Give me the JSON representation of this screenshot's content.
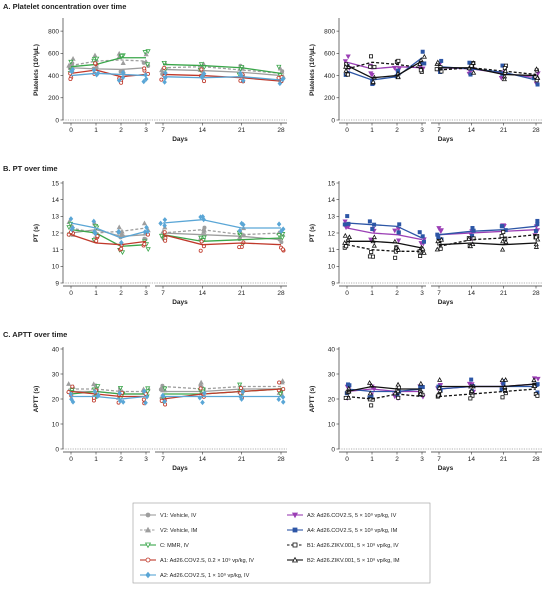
{
  "sections": [
    {
      "letter": "A.",
      "title": "Platelet concentration over time",
      "ylabel": "Platelets (10³/µL)",
      "yticks": [
        0,
        200,
        400,
        600,
        800
      ],
      "ylim": [
        0,
        900
      ]
    },
    {
      "letter": "B.",
      "title": "PT over time",
      "ylabel": "PT (s)",
      "yticks": [
        9,
        10,
        11,
        12,
        13,
        14,
        15
      ],
      "ylim": [
        9,
        15
      ]
    },
    {
      "letter": "C.",
      "title": "APTT over time",
      "ylabel": "APTT (s)",
      "yticks": [
        0,
        10,
        20,
        30,
        40
      ],
      "ylim": [
        0,
        40
      ]
    }
  ],
  "xlabel": "Days",
  "xticks": [
    "0",
    "1",
    "2",
    "3",
    "7",
    "14",
    "21",
    "28"
  ],
  "legend": [
    {
      "label": "V1: Vehicle, IV",
      "color": "#9e9e9e",
      "marker": "circle",
      "dash": false,
      "filled": true
    },
    {
      "label": "V2: Vehicle, IM",
      "color": "#9e9e9e",
      "marker": "triangle",
      "dash": true,
      "filled": true
    },
    {
      "label": "C: MMR, IV",
      "color": "#3aa64a",
      "marker": "triangle-down-open",
      "dash": false,
      "filled": false
    },
    {
      "label": "A1: Ad26.COV2.S, 0.2 × 10⁹ vp/kg, IV",
      "color": "#c0392b",
      "marker": "circle-open",
      "dash": false,
      "filled": false
    },
    {
      "label": "A2: Ad26.COV2.S, 1 × 10⁹ vp/kg, IV",
      "color": "#5aa6d6",
      "marker": "diamond",
      "dash": false,
      "filled": true
    },
    {
      "label": "A3: Ad26.COV2.S, 5 × 10⁹ vp/kg, IV",
      "color": "#9b3fb5",
      "marker": "triangle-down",
      "dash": false,
      "filled": true
    },
    {
      "label": "A4: Ad26.COV2.S, 5 × 10⁹ vp/kg, IM",
      "color": "#2d56a6",
      "marker": "square",
      "dash": false,
      "filled": true
    },
    {
      "label": "B1: Ad26.ZIKV.001, 5 × 10⁹ vp/kg, IV",
      "color": "#111111",
      "marker": "square-open",
      "dash": true,
      "filled": false
    },
    {
      "label": "B2: Ad26.ZIKV.001, 5 × 10⁹ vp/kg, IM",
      "color": "#111111",
      "marker": "triangle-open",
      "dash": false,
      "filled": false
    }
  ],
  "chart_data": [
    {
      "type": "line",
      "panel": "A-left",
      "x": [
        "0",
        "1",
        "2",
        "3",
        "7",
        "14",
        "21",
        "28"
      ],
      "ylim": [
        0,
        900
      ],
      "series": [
        {
          "name": "V1: Vehicle, IV",
          "values": [
            470,
            460,
            455,
            470,
            455,
            445,
            430,
            400
          ]
        },
        {
          "name": "V2: Vehicle, IM",
          "values": [
            490,
            530,
            540,
            530,
            470,
            480,
            450,
            420
          ]
        },
        {
          "name": "C: MMR, IV",
          "values": [
            480,
            500,
            560,
            560,
            500,
            490,
            470,
            420
          ]
        },
        {
          "name": "A1: Ad26.COV2.S, 0.2 × 10⁹ vp/kg, IV",
          "values": [
            420,
            450,
            390,
            410,
            410,
            400,
            380,
            350
          ]
        },
        {
          "name": "A2: Ad26.COV2.S, 1 × 10⁹ vp/kg, IV",
          "values": [
            400,
            420,
            410,
            400,
            390,
            380,
            390,
            360
          ]
        }
      ]
    },
    {
      "type": "line",
      "panel": "A-right",
      "x": [
        "0",
        "1",
        "2",
        "3",
        "7",
        "14",
        "21",
        "28"
      ],
      "ylim": [
        0,
        900
      ],
      "series": [
        {
          "name": "A3: Ad26.COV2.S, 5 × 10⁹ vp/kg, IV",
          "values": [
            520,
            460,
            480,
            470,
            470,
            460,
            420,
            380
          ]
        },
        {
          "name": "A4: Ad26.COV2.S, 5 × 10⁹ vp/kg, IM",
          "values": [
            440,
            360,
            390,
            560,
            480,
            460,
            430,
            360
          ]
        },
        {
          "name": "B1: Ad26.ZIKV.001, 5 × 10⁹ vp/kg, IV",
          "values": [
            460,
            520,
            500,
            470,
            450,
            470,
            440,
            410
          ]
        },
        {
          "name": "B2: Ad26.ZIKV.001, 5 × 10⁹ vp/kg, IM",
          "values": [
            490,
            380,
            400,
            530,
            470,
            470,
            410,
            400
          ]
        }
      ]
    },
    {
      "type": "line",
      "panel": "B-left",
      "x": [
        "0",
        "1",
        "2",
        "3",
        "7",
        "14",
        "21",
        "28"
      ],
      "ylim": [
        9,
        15
      ],
      "series": [
        {
          "name": "V1: Vehicle, IV",
          "values": [
            12.0,
            12.2,
            11.8,
            11.9,
            12.0,
            11.9,
            11.8,
            11.6
          ]
        },
        {
          "name": "V2: Vehicle, IM",
          "values": [
            12.3,
            12.0,
            12.1,
            12.3,
            12.0,
            12.2,
            11.9,
            12.0
          ]
        },
        {
          "name": "C: MMR, IV",
          "values": [
            12.2,
            12.0,
            11.2,
            11.3,
            11.9,
            11.5,
            11.6,
            11.7
          ]
        },
        {
          "name": "A1: Ad26.COV2.S, 0.2 × 10⁹ vp/kg, IV",
          "values": [
            11.9,
            11.4,
            11.3,
            11.5,
            11.9,
            11.3,
            11.4,
            11.3
          ]
        },
        {
          "name": "A2: Ad26.COV2.S, 1 × 10⁹ vp/kg, IV",
          "values": [
            12.6,
            12.3,
            11.7,
            12.1,
            12.6,
            12.8,
            12.3,
            12.3
          ]
        }
      ]
    },
    {
      "type": "line",
      "panel": "B-right",
      "x": [
        "0",
        "1",
        "2",
        "3",
        "7",
        "14",
        "21",
        "28"
      ],
      "ylim": [
        9,
        15
      ],
      "series": [
        {
          "name": "A3: Ad26.COV2.S, 5 × 10⁹ vp/kg, IV",
          "values": [
            12.3,
            12.0,
            11.9,
            11.6,
            11.9,
            12.0,
            12.1,
            12.2
          ]
        },
        {
          "name": "A4: Ad26.COV2.S, 5 × 10⁹ vp/kg, IM",
          "values": [
            12.6,
            12.5,
            12.4,
            11.7,
            11.9,
            12.1,
            12.2,
            12.4
          ]
        },
        {
          "name": "B1: Ad26.ZIKV.001, 5 × 10⁹ vp/kg, IV",
          "values": [
            11.3,
            11.0,
            10.9,
            10.9,
            11.2,
            11.6,
            11.7,
            11.9
          ]
        },
        {
          "name": "B2: Ad26.ZIKV.001, 5 × 10⁹ vp/kg, IM",
          "values": [
            11.5,
            11.5,
            11.4,
            11.1,
            11.3,
            11.4,
            11.3,
            11.4
          ]
        }
      ]
    },
    {
      "type": "line",
      "panel": "C-left",
      "x": [
        "0",
        "1",
        "2",
        "3",
        "7",
        "14",
        "21",
        "28"
      ],
      "ylim": [
        0,
        40
      ],
      "series": [
        {
          "name": "V1: Vehicle, IV",
          "values": [
            23,
            23,
            22,
            22,
            23,
            23,
            24,
            24
          ]
        },
        {
          "name": "V2: Vehicle, IM",
          "values": [
            24,
            24,
            23,
            23,
            25,
            24,
            25,
            25
          ]
        },
        {
          "name": "C: MMR, IV",
          "values": [
            22,
            23,
            22,
            22,
            22,
            22,
            23,
            24
          ]
        },
        {
          "name": "A1: Ad26.COV2.S, 0.2 × 10⁹ vp/kg, IV",
          "values": [
            23,
            22,
            21,
            21,
            20,
            22,
            23,
            24
          ]
        },
        {
          "name": "A2: Ad26.COV2.S, 1 × 10⁹ vp/kg, IV",
          "values": [
            21,
            21,
            20,
            21,
            21,
            21,
            21,
            21
          ]
        }
      ]
    },
    {
      "type": "line",
      "panel": "C-right",
      "x": [
        "0",
        "1",
        "2",
        "3",
        "7",
        "14",
        "21",
        "28"
      ],
      "ylim": [
        0,
        40
      ],
      "series": [
        {
          "name": "A3: Ad26.COV2.S, 5 × 10⁹ vp/kg, IV",
          "values": [
            23,
            24,
            23,
            23,
            24,
            25,
            25,
            26
          ]
        },
        {
          "name": "A4: Ad26.COV2.S, 5 × 10⁹ vp/kg, IM",
          "values": [
            24,
            23,
            23,
            24,
            24,
            25,
            25,
            25
          ]
        },
        {
          "name": "B1: Ad26.ZIKV.001, 5 × 10⁹ vp/kg, IV",
          "values": [
            21,
            20,
            22,
            21,
            21,
            22,
            23,
            24
          ]
        },
        {
          "name": "B2: Ad26.ZIKV.001, 5 × 10⁹ vp/kg, IM",
          "values": [
            23,
            25,
            24,
            24,
            25,
            25,
            25,
            26
          ]
        }
      ]
    }
  ]
}
